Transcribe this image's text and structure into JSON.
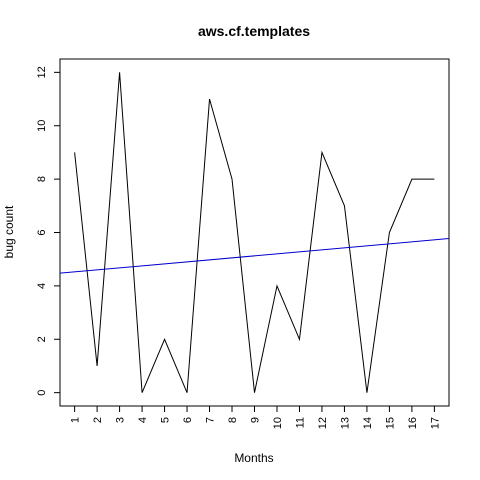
{
  "chart_data": {
    "type": "line",
    "title": "aws.cf.templates",
    "xlabel": "Months",
    "ylabel": "bug count",
    "x": [
      1,
      2,
      3,
      4,
      5,
      6,
      7,
      8,
      9,
      10,
      11,
      12,
      13,
      14,
      15,
      16,
      17
    ],
    "series": [
      {
        "values": [
          9,
          1,
          12,
          0,
          2,
          0,
          11,
          8,
          0,
          4,
          2,
          9,
          7,
          0,
          6,
          8,
          8
        ],
        "color": "#000000"
      }
    ],
    "trend_line": {
      "y_at_x0": 4.45,
      "slope": 0.075,
      "color": "#0000cc"
    },
    "xlim": [
      0.35,
      17.65
    ],
    "ylim": [
      -0.5,
      12.5
    ],
    "y_ticks": [
      0,
      2,
      4,
      6,
      8,
      10,
      12
    ],
    "x_ticks": [
      1,
      2,
      3,
      4,
      5,
      6,
      7,
      8,
      9,
      10,
      11,
      12,
      13,
      14,
      15,
      16,
      17
    ],
    "grid": false,
    "legend": "none"
  }
}
